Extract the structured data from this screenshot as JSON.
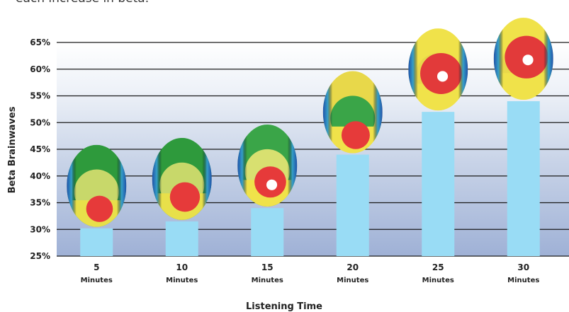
{
  "caption": "each increase in beta.",
  "chart_data": {
    "type": "bar",
    "categories": [
      "5",
      "10",
      "15",
      "20",
      "25",
      "30"
    ],
    "category_sublabel": "Minutes",
    "values": [
      30.2,
      31.5,
      34.0,
      44.0,
      52.0,
      54.0
    ],
    "xlabel": "Listening Time",
    "ylabel": "Beta Brainwaves",
    "ylim": [
      25,
      65
    ],
    "yticks": [
      25,
      30,
      35,
      40,
      45,
      50,
      55,
      60,
      65
    ],
    "ytick_suffix": "%",
    "grid": true,
    "bar_color": "#99dcf5",
    "annotations": "brain activity topographic map above each bar"
  }
}
